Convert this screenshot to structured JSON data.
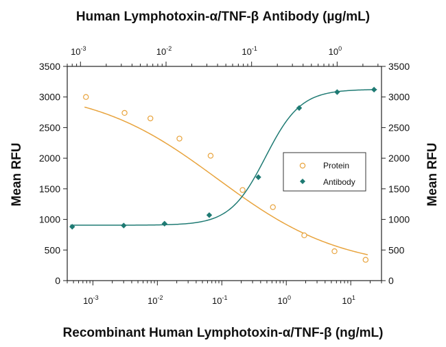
{
  "chart_data": {
    "type": "scatter",
    "top_title": "Human Lymphotoxin-α/TNF-β  Antibody (µg/mL)",
    "xlabel": "Recombinant Human Lymphotoxin-α/TNF-β (ng/mL)",
    "ylabel_left": "Mean RFU",
    "ylabel_right": "Mean RFU",
    "x_scale": "log",
    "bottom_xlim": [
      0.0004,
      30
    ],
    "top_xlim": [
      0.0007,
      3.3
    ],
    "ylim": [
      0,
      3500
    ],
    "y_ticks": [
      0,
      500,
      1000,
      1500,
      2000,
      2500,
      3000,
      3500
    ],
    "bottom_x_ticks": [
      {
        "base": "10",
        "exp": "-3",
        "value": 0.001
      },
      {
        "base": "10",
        "exp": "-2",
        "value": 0.01
      },
      {
        "base": "10",
        "exp": "-1",
        "value": 0.1
      },
      {
        "base": "10",
        "exp": "0",
        "value": 1
      },
      {
        "base": "10",
        "exp": "1",
        "value": 10
      }
    ],
    "top_x_ticks": [
      {
        "base": "10",
        "exp": "-3",
        "value": 0.001
      },
      {
        "base": "10",
        "exp": "-2",
        "value": 0.01
      },
      {
        "base": "10",
        "exp": "-1",
        "value": 0.1
      },
      {
        "base": "10",
        "exp": "0",
        "value": 1
      }
    ],
    "legend_position": "right-middle",
    "series": [
      {
        "name": "Protein",
        "marker": "open-circle",
        "color": "#E8A33C",
        "x_axis": "bottom",
        "x": [
          0.00078,
          0.0031,
          0.0078,
          0.022,
          0.067,
          0.21,
          0.62,
          1.9,
          5.6,
          17
        ],
        "y": [
          3000,
          2740,
          2650,
          2320,
          2040,
          1480,
          1200,
          740,
          480,
          340
        ],
        "fit": {
          "top": 3150,
          "bottom": 180,
          "ec50": 0.085,
          "hill": 0.45
        }
      },
      {
        "name": "Antibody",
        "marker": "filled-diamond",
        "color": "#1E7A73",
        "x_axis": "top",
        "x": [
          0.0008,
          0.0032,
          0.0096,
          0.032,
          0.12,
          0.36,
          1.0,
          2.7
        ],
        "y": [
          880,
          900,
          930,
          1070,
          1690,
          2820,
          3080,
          3120
        ],
        "fit": {
          "top": 3125,
          "bottom": 905,
          "ec50": 0.145,
          "hill": 2.1
        }
      }
    ]
  }
}
